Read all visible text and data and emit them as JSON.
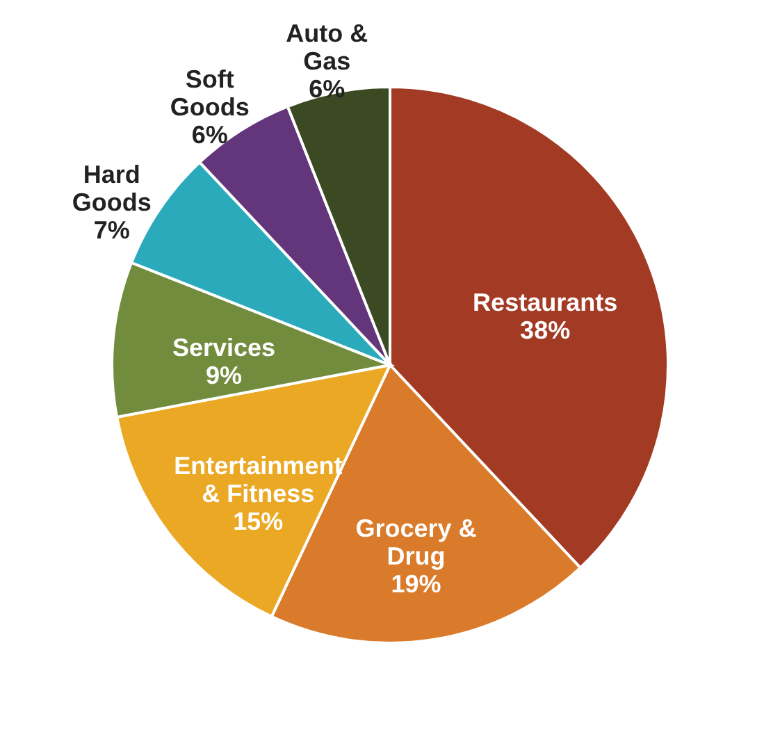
{
  "chart_data": {
    "type": "pie",
    "categories": [
      "Restaurants",
      "Grocery & Drug",
      "Entertainment & Fitness",
      "Services",
      "Hard Goods",
      "Soft Goods",
      "Auto & Gas"
    ],
    "values": [
      38,
      19,
      15,
      9,
      7,
      6,
      6
    ],
    "colors": [
      "#a33a24",
      "#d97b2a",
      "#eaa824",
      "#728c3e",
      "#2aaabb",
      "#63357a",
      "#3b4a22"
    ],
    "value_labels": [
      "38%",
      "19%",
      "15%",
      "9%",
      "7%",
      "6%",
      "6%"
    ]
  }
}
